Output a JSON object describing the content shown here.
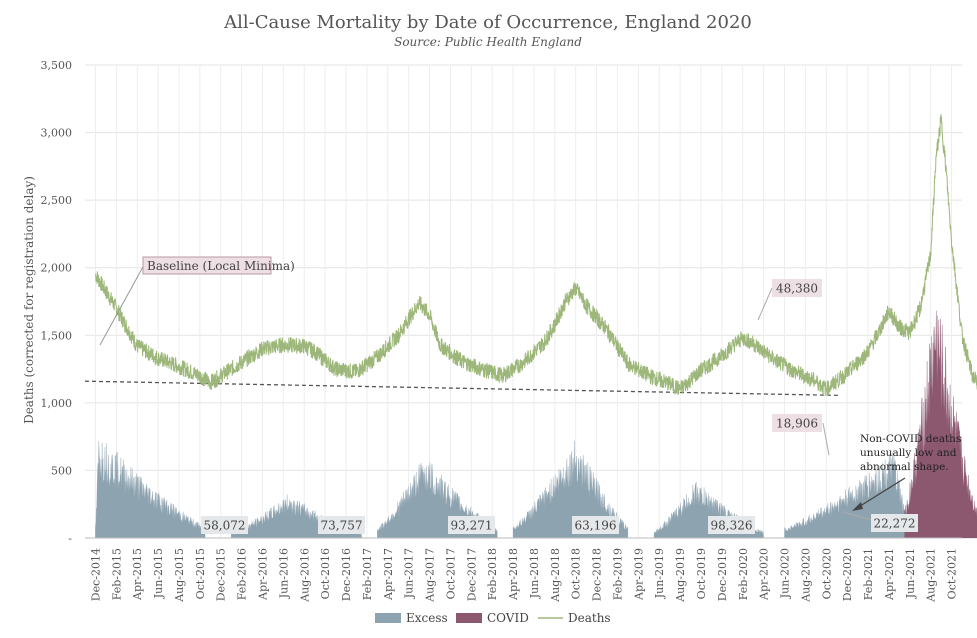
{
  "chart_data": {
    "type": "area",
    "title": "All-Cause Mortality by Date of Occurrence, England 2020",
    "subtitle": "Source: Public Health England",
    "ylabel": "Deaths (corrected for registration delay)",
    "xlabel": "",
    "ylim": [
      0,
      3500
    ],
    "yticks": [
      0,
      500,
      1000,
      1500,
      2000,
      2500,
      3000,
      3500
    ],
    "ytick_labels": [
      "-",
      "500",
      "1,000",
      "1,500",
      "2,000",
      "2,500",
      "3,000",
      "3,500"
    ],
    "x_tick_labels": [
      "Dec-2014",
      "Feb-2015",
      "Apr-2015",
      "Jun-2015",
      "Aug-2015",
      "Oct-2015",
      "Dec-2015",
      "Feb-2016",
      "Apr-2016",
      "Jun-2016",
      "Aug-2016",
      "Oct-2016",
      "Dec-2016",
      "Feb-2017",
      "Apr-2017",
      "Jun-2017",
      "Aug-2017",
      "Oct-2017",
      "Dec-2017",
      "Feb-2018",
      "Apr-2018",
      "Jun-2018",
      "Aug-2018",
      "Oct-2018",
      "Dec-2018",
      "Feb-2019",
      "Apr-2019",
      "Jun-2019",
      "Aug-2019",
      "Oct-2019",
      "Dec-2019",
      "Feb-2020",
      "Apr-2020",
      "Jun-2020",
      "Aug-2020",
      "Oct-2020",
      "Dec-2020",
      "Feb-2021",
      "Apr-2021",
      "Jun-2021",
      "Aug-2021",
      "Oct-2021"
    ],
    "baseline": {
      "label": "Baseline (Local Minima)",
      "start_value": 1160,
      "end_value": 1055
    },
    "series": [
      {
        "name": "Excess",
        "color": "#8ea3b0"
      },
      {
        "name": "COVID",
        "color": "#8c5870"
      },
      {
        "name": "Deaths",
        "color": "#9db77a"
      }
    ],
    "deaths_keypoints": [
      [
        0,
        1950
      ],
      [
        2,
        1700
      ],
      [
        4,
        1420
      ],
      [
        6,
        1330
      ],
      [
        8,
        1270
      ],
      [
        10,
        1200
      ],
      [
        11,
        1150
      ],
      [
        14,
        1300
      ],
      [
        16,
        1400
      ],
      [
        18,
        1430
      ],
      [
        20,
        1420
      ],
      [
        21,
        1380
      ],
      [
        23,
        1250
      ],
      [
        25,
        1230
      ],
      [
        27,
        1340
      ],
      [
        29,
        1500
      ],
      [
        30,
        1620
      ],
      [
        31,
        1740
      ],
      [
        32,
        1650
      ],
      [
        33,
        1430
      ],
      [
        35,
        1310
      ],
      [
        37,
        1250
      ],
      [
        39,
        1200
      ],
      [
        41,
        1300
      ],
      [
        43,
        1450
      ],
      [
        44,
        1580
      ],
      [
        45,
        1750
      ],
      [
        46,
        1850
      ],
      [
        47,
        1720
      ],
      [
        49,
        1540
      ],
      [
        51,
        1290
      ],
      [
        53,
        1200
      ],
      [
        55,
        1140
      ],
      [
        56,
        1100
      ],
      [
        58,
        1240
      ],
      [
        60,
        1350
      ],
      [
        61,
        1420
      ],
      [
        62,
        1480
      ],
      [
        63,
        1440
      ],
      [
        65,
        1320
      ],
      [
        67,
        1230
      ],
      [
        69,
        1160
      ],
      [
        70,
        1100
      ],
      [
        72,
        1220
      ],
      [
        74,
        1380
      ],
      [
        75,
        1520
      ],
      [
        76,
        1680
      ],
      [
        77,
        1560
      ],
      [
        78,
        1520
      ],
      [
        79,
        1700
      ],
      [
        80,
        2100
      ],
      [
        80.5,
        2800
      ],
      [
        81,
        3100
      ],
      [
        81.5,
        2700
      ],
      [
        82,
        2200
      ],
      [
        83,
        1500
      ],
      [
        84,
        1200
      ],
      [
        85,
        1100
      ],
      [
        86,
        1170
      ],
      [
        87,
        1250
      ],
      [
        88,
        1280
      ],
      [
        89,
        1450
      ],
      [
        90,
        1650
      ],
      [
        91,
        1700
      ]
    ],
    "excess_clusters": [
      {
        "start": 0,
        "end": 10.5,
        "peak": 780,
        "peak_at": 0.3
      },
      {
        "start": 13,
        "end": 25.5,
        "peak": 330,
        "peak_at": 18.5
      },
      {
        "start": 27,
        "end": 38.5,
        "peak": 620,
        "peak_at": 31.5
      },
      {
        "start": 40,
        "end": 51,
        "peak": 740,
        "peak_at": 46
      },
      {
        "start": 53.5,
        "end": 64,
        "peak": 430,
        "peak_at": 57.5
      },
      {
        "start": 66,
        "end": 78,
        "peak": 650,
        "peak_at": 76.5
      },
      {
        "start": 86.5,
        "end": 91,
        "peak": 220,
        "peak_at": 87.5
      }
    ],
    "covid_clusters": [
      {
        "start": 77.5,
        "end": 84.5,
        "peak": 1880,
        "peak_at": 80.5
      },
      {
        "start": 86.5,
        "end": 91,
        "peak": 660,
        "peak_at": 90.5
      }
    ],
    "wave_labels": [
      "58,072",
      "73,757",
      "93,271",
      "63,196",
      "98,326",
      "22,272"
    ],
    "covid_labels": [
      "48,380",
      "18,906"
    ],
    "annotation": "Non-COVID deaths unusually low and abnormal shape.",
    "legend": [
      "Excess",
      "COVID",
      "Deaths"
    ]
  }
}
